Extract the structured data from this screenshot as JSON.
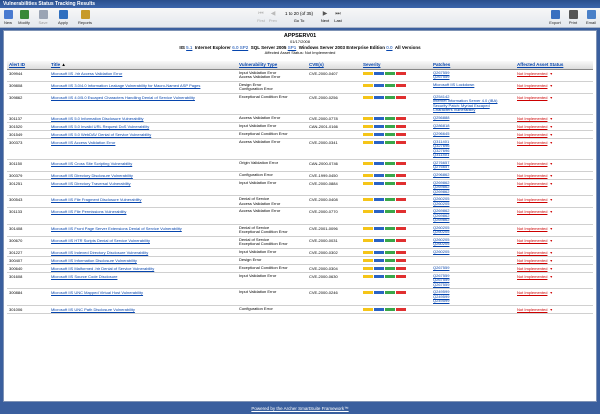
{
  "window": {
    "title": "Vulnerabilities Status Tracking Results"
  },
  "toolbar": {
    "left": [
      {
        "label": "New",
        "color": "#4a7bd0"
      },
      {
        "label": "Modify",
        "color": "#3a8a3a"
      },
      {
        "label": "Save",
        "color": "#9aa4b4"
      },
      {
        "label": "Apply",
        "color": "#2f6fbf"
      },
      {
        "label": "Reports",
        "color": "#c79a2a"
      }
    ],
    "right": [
      {
        "label": "Export",
        "color": "#3a70c0"
      },
      {
        "label": "Print",
        "color": "#555555"
      },
      {
        "label": "Email",
        "color": "#4a80c8"
      }
    ],
    "pager": {
      "first": "First",
      "prev": "Prev",
      "next": "Next",
      "last": "Last",
      "info": "1 to 20 (of 35)",
      "goto": "Go To"
    }
  },
  "header": {
    "server": "APPSERV01",
    "date": "01/17/2008",
    "apps": [
      {
        "name": "IIS",
        "ver": "5.1"
      },
      {
        "name": "Internet Explorer",
        "ver": "6.0 SP2"
      },
      {
        "name": "SQL Server 2005",
        "ver": "SP1"
      },
      {
        "name": "Windows Server 2003 Enterprise Edition",
        "ver": "0.0"
      }
    ],
    "all_versions": "All Versions",
    "affected": "Affected Asset Status: Not Implemented"
  },
  "columns": {
    "alert_id": "Alert ID",
    "title": "Title",
    "vuln_type": "Vulnerability Type",
    "cve": "CVE(s)",
    "severity": "Severity",
    "patches": "Patches",
    "status": "Affected Asset Status"
  },
  "severity_colors": [
    "#f5c518",
    "#2a63c4",
    "#3aa64a",
    "#e03030"
  ],
  "rows": [
    {
      "id": "309944",
      "title": "Microsoft IIS .htr Access Validation Error",
      "types": [
        "Input Validation Error",
        "Access Validation Error"
      ],
      "cve": "CVE-2000-0407",
      "patches": [
        "Q267559",
        "Q267559"
      ],
      "status": "Not Implemented"
    },
    {
      "id": "309808",
      "title": "Microsoft IIS 3.0/4.0 Information Leakage Vulnerability for Macro-Named ASP Pages",
      "types": [
        "Design Error",
        "Configuration Error"
      ],
      "cve": "",
      "patches": [
        "Microsoft IIS Lockdown"
      ],
      "status": "Not Implemented"
    },
    {
      "id": "309862",
      "title": "Microsoft IIS 4.0/5.0 Escaped Characters Handling Denial of Service Vulnerability",
      "types": [
        "Exceptional Condition Error"
      ],
      "cve": "CVE-2000-0256",
      "patches": [
        "Q254142",
        "Internet Information Server 4.0 (IBA)",
        "Security Patch: Myriad Escaped",
        "Characters Vulnerability"
      ],
      "status": "Not Implemented"
    },
    {
      "id": "301137",
      "title": "Microsoft IIS 5.0 Information Disclosure Vulnerability",
      "types": [
        "Access Validation Error"
      ],
      "cve": "CVE-2000-0778",
      "patches": [
        "Q256888"
      ],
      "status": "Not Implemented"
    },
    {
      "id": "301520",
      "title": "Microsoft IIS 5.0 Invalid URL Request DoS Vulnerability",
      "types": [
        "Input Validation Error"
      ],
      "cve": "CAN-2001-0166",
      "patches": [
        "Q286818"
      ],
      "status": "Not Implemented"
    },
    {
      "id": "301549",
      "title": "Microsoft IIS 5.0 WebDAV Denial of Service Vulnerability",
      "types": [
        "Exceptional Condition Error"
      ],
      "cve": "",
      "patches": [
        "Q296645"
      ],
      "status": "Not Implemented"
    },
    {
      "id": "300373",
      "title": "Microsoft IIS Access Validation Error",
      "types": [
        "Access Validation Error"
      ],
      "cve": "CVE-2000-0341",
      "patches": [
        "Q311401",
        "Q327696",
        "Q327696",
        "Q311401"
      ],
      "status": "Not Implemented"
    },
    {
      "id": "301150",
      "title": "Microsoft IIS Cross Site Scripting Vulnerability",
      "types": [
        "Origin Validation Error"
      ],
      "cve": "CAN-2000-0746",
      "patches": [
        "Q276657",
        "Q276657"
      ],
      "status": "Not Implemented"
    },
    {
      "id": "300379",
      "title": "Microsoft IIS Directory Disclosure Vulnerability",
      "types": [
        "Configuration Error"
      ],
      "cve": "CVE-1999-0450",
      "patches": [
        "Q296862"
      ],
      "status": "Not Implemented"
    },
    {
      "id": "301251",
      "title": "Microsoft IIS Directory Traversal Vulnerability",
      "types": [
        "Input Validation Error"
      ],
      "cve": "CVE-2000-0884",
      "patches": [
        "Q269862",
        "Q269862",
        "Q269862"
      ],
      "status": "Not Implemented"
    },
    {
      "id": "300543",
      "title": "Microsoft IIS File Fragment Disclosure Vulnerability",
      "types": [
        "Denial of Service",
        "Access Validation Error"
      ],
      "cve": "CVE-2000-0408",
      "patches": [
        "Q260205",
        "Q260205"
      ],
      "status": "Not Implemented"
    },
    {
      "id": "301133",
      "title": "Microsoft IIS File Permissions Vulnerability",
      "types": [
        "Access Validation Error"
      ],
      "cve": "CVE-2000-0770",
      "patches": [
        "Q269862",
        "Q269862",
        "Q269862"
      ],
      "status": "Not Implemented"
    },
    {
      "id": "301408",
      "title": "Microsoft IIS Front Page Server Extensions Denial of Service Vulnerability",
      "types": [
        "Denial of Service",
        "Exceptional Condition Error"
      ],
      "cve": "CVE-2001-0096",
      "patches": [
        "Q260205",
        "Q260205"
      ],
      "status": "Not Implemented"
    },
    {
      "id": "300670",
      "title": "Microsoft IIS HTR Scripts Denial of Service Vulnerability",
      "types": [
        "Denial of Service",
        "Exceptional Condition Error"
      ],
      "cve": "CVE-2000-0031",
      "patches": [
        "Q260205",
        "Q260205"
      ],
      "status": "Not Implemented"
    },
    {
      "id": "301227",
      "title": "Microsoft IIS Indexed Directory Disclosure Vulnerability",
      "types": [
        "Input Validation Error"
      ],
      "cve": "CVE-2000-0302",
      "patches": [
        "Q260205"
      ],
      "status": "Not Implemented"
    },
    {
      "id": "300407",
      "title": "Microsoft IIS Information Disclosure Vulnerability",
      "types": [
        "Design Error"
      ],
      "cve": "",
      "patches": [],
      "status": "Not Implemented"
    },
    {
      "id": "300640",
      "title": "Microsoft IIS Malformed .htr Denial of Service Vulnerability",
      "types": [
        "Exceptional Condition Error"
      ],
      "cve": "CVE-2000-0304",
      "patches": [
        "Q267559"
      ],
      "status": "Not Implemented"
    },
    {
      "id": "301608",
      "title": "Microsoft IIS Source Code Disclosure",
      "types": [
        "Input Validation Error"
      ],
      "cve": "CVE-2000-0630",
      "patches": [
        "Q267559",
        "Q267559",
        "Q267559"
      ],
      "status": "Not Implemented"
    },
    {
      "id": "300884",
      "title": "Microsoft IIS UNC Mapped Virtual Host Vulnerability",
      "types": [
        "Input Validation Error"
      ],
      "cve": "CVE-2000-0246",
      "patches": [
        "Q249599",
        "Q249599",
        "Q249599"
      ],
      "status": "Not Implemented"
    },
    {
      "id": "301006",
      "title": "Microsoft IIS UNC Path Disclosure Vulnerability",
      "types": [
        "Configuration Error"
      ],
      "cve": "",
      "patches": [],
      "status": "Not Implemented"
    }
  ],
  "footer": {
    "text": "Powered by the Archer SmartSuite Framework™"
  }
}
